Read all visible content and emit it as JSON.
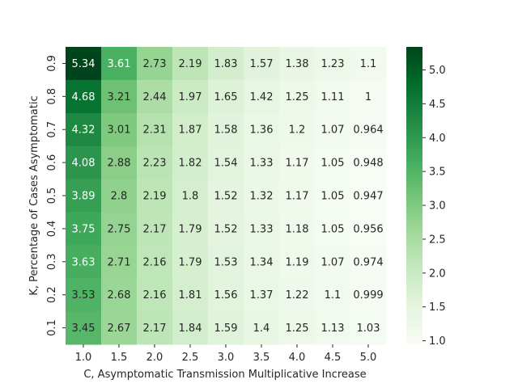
{
  "chart_data": {
    "type": "heatmap",
    "title": "",
    "xlabel": "C, Asymptomatic Transmission Multiplicative Increase",
    "ylabel": "K, Percentage of Cases Asymptomatic",
    "x_categories": [
      "1.0",
      "1.5",
      "2.0",
      "2.5",
      "3.0",
      "3.5",
      "4.0",
      "4.5",
      "5.0"
    ],
    "y_categories": [
      "0.9",
      "0.8",
      "0.7",
      "0.6",
      "0.5",
      "0.4",
      "0.3",
      "0.2",
      "0.1"
    ],
    "values": [
      [
        5.34,
        3.61,
        2.73,
        2.19,
        1.83,
        1.57,
        1.38,
        1.23,
        1.1
      ],
      [
        4.68,
        3.21,
        2.44,
        1.97,
        1.65,
        1.42,
        1.25,
        1.11,
        1
      ],
      [
        4.32,
        3.01,
        2.31,
        1.87,
        1.58,
        1.36,
        1.2,
        1.07,
        0.964
      ],
      [
        4.08,
        2.88,
        2.23,
        1.82,
        1.54,
        1.33,
        1.17,
        1.05,
        0.948
      ],
      [
        3.89,
        2.8,
        2.19,
        1.8,
        1.52,
        1.32,
        1.17,
        1.05,
        0.947
      ],
      [
        3.75,
        2.75,
        2.17,
        1.79,
        1.52,
        1.33,
        1.18,
        1.05,
        0.956
      ],
      [
        3.63,
        2.71,
        2.16,
        1.79,
        1.53,
        1.34,
        1.19,
        1.07,
        0.974
      ],
      [
        3.53,
        2.68,
        2.16,
        1.81,
        1.56,
        1.37,
        1.22,
        1.1,
        0.999
      ],
      [
        3.45,
        2.67,
        2.17,
        1.84,
        1.59,
        1.4,
        1.25,
        1.13,
        1.03
      ]
    ],
    "colormap": "Greens",
    "color_range": [
      0.947,
      5.34
    ],
    "colorbar": {
      "ticks": [
        "1.0",
        "1.5",
        "2.0",
        "2.5",
        "3.0",
        "3.5",
        "4.0",
        "4.5",
        "5.0"
      ],
      "range": [
        0.947,
        5.34
      ]
    },
    "annotations": "cell values shown"
  }
}
